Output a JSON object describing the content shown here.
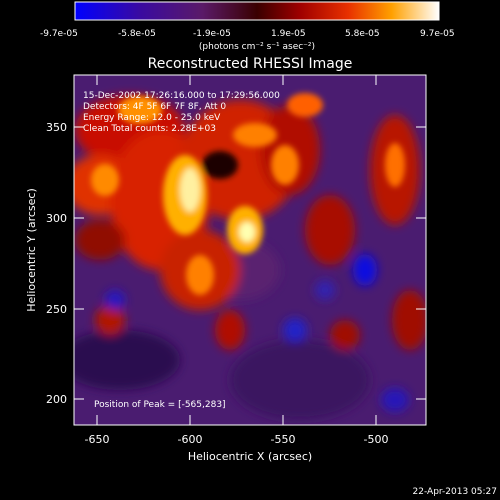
{
  "colorbar": {
    "ticks": [
      "-9.7e-05",
      "-5.8e-05",
      "-1.9e-05",
      "1.9e-05",
      "5.8e-05",
      "9.7e-05"
    ],
    "units": "(photons cm⁻² s⁻¹ asec⁻²)"
  },
  "image": {
    "title": "Reconstructed RHESSI Image",
    "info_lines": [
      "15-Dec-2002 17:26:16.000 to 17:29:56.000",
      "Detectors: 4F 5F 6F 7F 8F, Att 0",
      "Energy Range: 12.0 - 25.0 keV",
      "Clean     Total counts: 2.28E+03"
    ],
    "peak_label": "Position of Peak = [-565,283]",
    "x_axis": {
      "label": "Heliocentric X (arcsec)",
      "ticks": [
        "-650",
        "-600",
        "-550",
        "-500"
      ]
    },
    "y_axis": {
      "label": "Heliocentric Y (arcsec)",
      "ticks": [
        "200",
        "250",
        "300",
        "350"
      ]
    }
  },
  "footer": {
    "date": "22-Apr-2013 05:27"
  }
}
